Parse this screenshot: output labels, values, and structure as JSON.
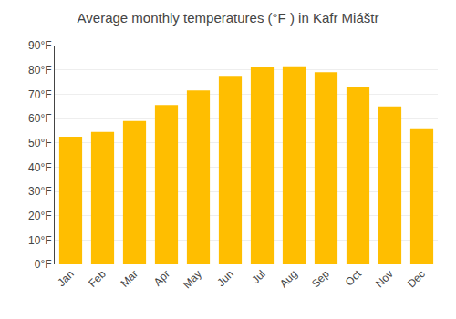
{
  "chart_data": {
    "type": "bar",
    "title": "Average monthly temperatures (°F ) in Kafr Miáštr",
    "categories": [
      "Jan",
      "Feb",
      "Mar",
      "Apr",
      "May",
      "Jun",
      "Jul",
      "Aug",
      "Sep",
      "Oct",
      "Nov",
      "Dec"
    ],
    "values": [
      52.5,
      54.5,
      59.0,
      65.5,
      71.5,
      77.5,
      81.0,
      81.5,
      79.0,
      73.0,
      65.0,
      56.0
    ],
    "color": "#FFBE00",
    "ylim": [
      0,
      90
    ],
    "yticks": [
      {
        "value": 0,
        "label": "0°F"
      },
      {
        "value": 10,
        "label": "10°F"
      },
      {
        "value": 20,
        "label": "20°F"
      },
      {
        "value": 30,
        "label": "30°F"
      },
      {
        "value": 40,
        "label": "40°F"
      },
      {
        "value": 50,
        "label": "50°F"
      },
      {
        "value": 60,
        "label": "60°F"
      },
      {
        "value": 70,
        "label": "70°F"
      },
      {
        "value": 80,
        "label": "80°F"
      },
      {
        "value": 90,
        "label": "90°F"
      }
    ],
    "grid": true
  }
}
